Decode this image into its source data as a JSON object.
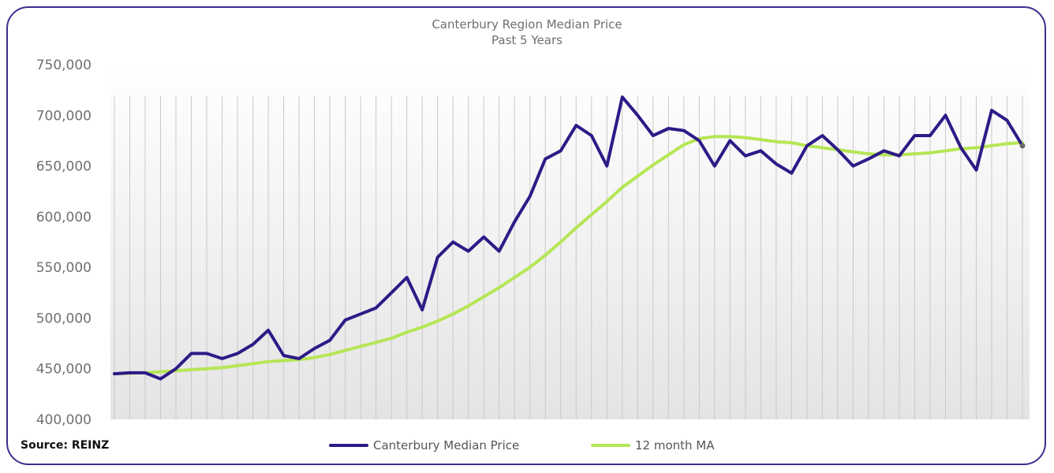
{
  "chart_data": {
    "type": "line",
    "title": "Canterbury Region Median Price",
    "subtitle": "Past 5 Years",
    "xlabel": "",
    "ylabel": "",
    "ylim": [
      400000,
      750000
    ],
    "yticks": [
      "400,000",
      "450,000",
      "500,000",
      "550,000",
      "600,000",
      "650,000",
      "700,000",
      "750,000"
    ],
    "grid": "vertical",
    "legend_position": "bottom",
    "series": [
      {
        "name": "Canterbury Median Price",
        "color": "#2e1a87",
        "values": [
          445000,
          446000,
          446000,
          440000,
          450000,
          465000,
          465000,
          460000,
          465000,
          474000,
          488000,
          463000,
          460000,
          470000,
          478000,
          498000,
          504000,
          510000,
          525000,
          540000,
          508000,
          560000,
          575000,
          566000,
          580000,
          566000,
          595000,
          620000,
          657000,
          665000,
          690000,
          680000,
          650000,
          718000,
          700000,
          680000,
          687000,
          685000,
          675000,
          650000,
          675000,
          660000,
          665000,
          652000,
          643000,
          670000,
          680000,
          666000,
          650000,
          657000,
          665000,
          660000,
          680000,
          680000,
          700000,
          668000,
          646000,
          705000,
          695000,
          670000
        ]
      },
      {
        "name": "12 month MA",
        "color": "#b5e655",
        "values": [
          445000,
          445500,
          446000,
          447000,
          448000,
          449000,
          450000,
          451000,
          453000,
          455000,
          457000,
          458000,
          459000,
          461000,
          464000,
          468000,
          472000,
          476000,
          480000,
          486000,
          491000,
          497000,
          504000,
          512000,
          521000,
          530000,
          540000,
          550000,
          562000,
          575000,
          589000,
          602000,
          615000,
          629000,
          640000,
          651000,
          661000,
          671000,
          677000,
          679000,
          679000,
          678000,
          676000,
          674000,
          673000,
          670000,
          668000,
          666000,
          664000,
          662000,
          661000,
          661000,
          662000,
          663000,
          665000,
          667000,
          668000,
          670000,
          672000,
          673000
        ]
      }
    ]
  },
  "source_label": "Source: REINZ"
}
